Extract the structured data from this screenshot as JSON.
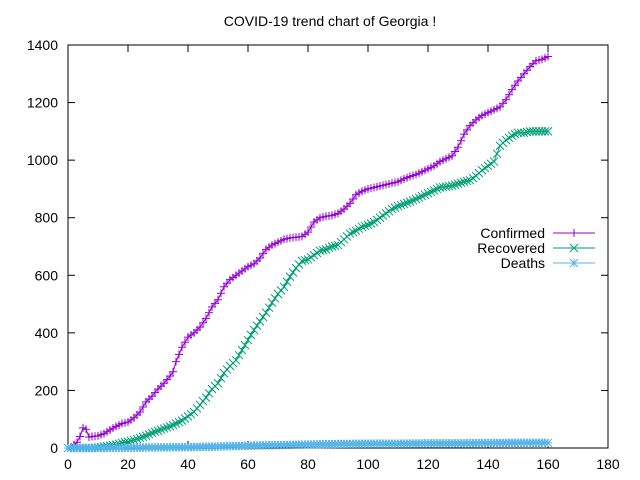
{
  "chart_data": {
    "type": "line",
    "title": "COVID-19 trend chart of Georgia !",
    "xlabel": "",
    "ylabel": "",
    "xlim": [
      0,
      180
    ],
    "ylim": [
      0,
      1400
    ],
    "xticks": [
      0,
      20,
      40,
      60,
      80,
      100,
      120,
      140,
      160,
      180
    ],
    "yticks": [
      0,
      200,
      400,
      600,
      800,
      1000,
      1200,
      1400
    ],
    "grid": false,
    "legend_position": "right",
    "series": [
      {
        "name": "Confirmed",
        "color": "#9400d3",
        "marker": "plus",
        "points": [
          [
            0,
            0
          ],
          [
            1,
            3
          ],
          [
            3,
            20
          ],
          [
            4,
            40
          ],
          [
            5,
            70
          ],
          [
            6,
            65
          ],
          [
            7,
            38
          ],
          [
            8,
            40
          ],
          [
            10,
            42
          ],
          [
            12,
            50
          ],
          [
            14,
            63
          ],
          [
            16,
            75
          ],
          [
            18,
            85
          ],
          [
            20,
            90
          ],
          [
            22,
            105
          ],
          [
            24,
            125
          ],
          [
            26,
            160
          ],
          [
            28,
            180
          ],
          [
            30,
            205
          ],
          [
            32,
            225
          ],
          [
            34,
            250
          ],
          [
            35,
            265
          ],
          [
            36,
            300
          ],
          [
            38,
            350
          ],
          [
            40,
            385
          ],
          [
            42,
            400
          ],
          [
            44,
            420
          ],
          [
            46,
            450
          ],
          [
            48,
            490
          ],
          [
            50,
            515
          ],
          [
            52,
            560
          ],
          [
            54,
            585
          ],
          [
            56,
            600
          ],
          [
            58,
            615
          ],
          [
            60,
            630
          ],
          [
            62,
            640
          ],
          [
            64,
            660
          ],
          [
            66,
            690
          ],
          [
            68,
            705
          ],
          [
            70,
            715
          ],
          [
            72,
            725
          ],
          [
            74,
            730
          ],
          [
            76,
            732
          ],
          [
            78,
            735
          ],
          [
            80,
            750
          ],
          [
            82,
            785
          ],
          [
            84,
            800
          ],
          [
            86,
            805
          ],
          [
            88,
            808
          ],
          [
            90,
            815
          ],
          [
            92,
            830
          ],
          [
            94,
            850
          ],
          [
            96,
            880
          ],
          [
            98,
            892
          ],
          [
            100,
            900
          ],
          [
            102,
            905
          ],
          [
            104,
            910
          ],
          [
            106,
            915
          ],
          [
            108,
            920
          ],
          [
            110,
            925
          ],
          [
            112,
            935
          ],
          [
            114,
            943
          ],
          [
            116,
            950
          ],
          [
            118,
            960
          ],
          [
            120,
            970
          ],
          [
            122,
            980
          ],
          [
            124,
            995
          ],
          [
            126,
            1005
          ],
          [
            128,
            1015
          ],
          [
            130,
            1045
          ],
          [
            132,
            1090
          ],
          [
            134,
            1120
          ],
          [
            136,
            1140
          ],
          [
            138,
            1155
          ],
          [
            140,
            1165
          ],
          [
            142,
            1175
          ],
          [
            144,
            1185
          ],
          [
            146,
            1210
          ],
          [
            148,
            1245
          ],
          [
            150,
            1275
          ],
          [
            152,
            1300
          ],
          [
            154,
            1325
          ],
          [
            156,
            1345
          ],
          [
            158,
            1350
          ],
          [
            160,
            1360
          ]
        ]
      },
      {
        "name": "Recovered",
        "color": "#009e73",
        "marker": "cross",
        "points": [
          [
            0,
            0
          ],
          [
            2,
            0
          ],
          [
            4,
            0
          ],
          [
            6,
            0
          ],
          [
            8,
            0
          ],
          [
            10,
            2
          ],
          [
            12,
            5
          ],
          [
            14,
            8
          ],
          [
            16,
            12
          ],
          [
            18,
            18
          ],
          [
            20,
            22
          ],
          [
            22,
            28
          ],
          [
            24,
            35
          ],
          [
            26,
            43
          ],
          [
            28,
            52
          ],
          [
            30,
            60
          ],
          [
            32,
            68
          ],
          [
            34,
            75
          ],
          [
            36,
            85
          ],
          [
            38,
            95
          ],
          [
            40,
            110
          ],
          [
            42,
            125
          ],
          [
            44,
            150
          ],
          [
            46,
            175
          ],
          [
            48,
            205
          ],
          [
            50,
            225
          ],
          [
            52,
            260
          ],
          [
            54,
            285
          ],
          [
            56,
            305
          ],
          [
            58,
            340
          ],
          [
            60,
            375
          ],
          [
            62,
            410
          ],
          [
            64,
            440
          ],
          [
            66,
            470
          ],
          [
            68,
            505
          ],
          [
            70,
            535
          ],
          [
            72,
            560
          ],
          [
            74,
            595
          ],
          [
            76,
            625
          ],
          [
            78,
            650
          ],
          [
            80,
            655
          ],
          [
            82,
            670
          ],
          [
            84,
            685
          ],
          [
            86,
            690
          ],
          [
            88,
            700
          ],
          [
            90,
            705
          ],
          [
            92,
            725
          ],
          [
            94,
            745
          ],
          [
            96,
            755
          ],
          [
            98,
            768
          ],
          [
            100,
            775
          ],
          [
            102,
            785
          ],
          [
            104,
            800
          ],
          [
            106,
            815
          ],
          [
            108,
            830
          ],
          [
            110,
            840
          ],
          [
            112,
            848
          ],
          [
            114,
            856
          ],
          [
            116,
            865
          ],
          [
            118,
            875
          ],
          [
            120,
            885
          ],
          [
            122,
            895
          ],
          [
            124,
            905
          ],
          [
            126,
            908
          ],
          [
            128,
            912
          ],
          [
            130,
            918
          ],
          [
            132,
            925
          ],
          [
            134,
            930
          ],
          [
            136,
            945
          ],
          [
            138,
            965
          ],
          [
            140,
            980
          ],
          [
            142,
            995
          ],
          [
            144,
            1050
          ],
          [
            146,
            1070
          ],
          [
            148,
            1085
          ],
          [
            150,
            1095
          ],
          [
            152,
            1095
          ],
          [
            154,
            1100
          ],
          [
            156,
            1100
          ],
          [
            158,
            1100
          ],
          [
            160,
            1100
          ]
        ]
      },
      {
        "name": "Deaths",
        "color": "#56b4e9",
        "marker": "star",
        "points": [
          [
            0,
            0
          ],
          [
            10,
            0
          ],
          [
            20,
            1
          ],
          [
            30,
            2
          ],
          [
            40,
            3
          ],
          [
            50,
            5
          ],
          [
            60,
            8
          ],
          [
            70,
            10
          ],
          [
            80,
            12
          ],
          [
            90,
            14
          ],
          [
            100,
            15
          ],
          [
            110,
            15
          ],
          [
            120,
            16
          ],
          [
            130,
            16
          ],
          [
            140,
            17
          ],
          [
            150,
            18
          ],
          [
            160,
            18
          ]
        ]
      }
    ]
  }
}
